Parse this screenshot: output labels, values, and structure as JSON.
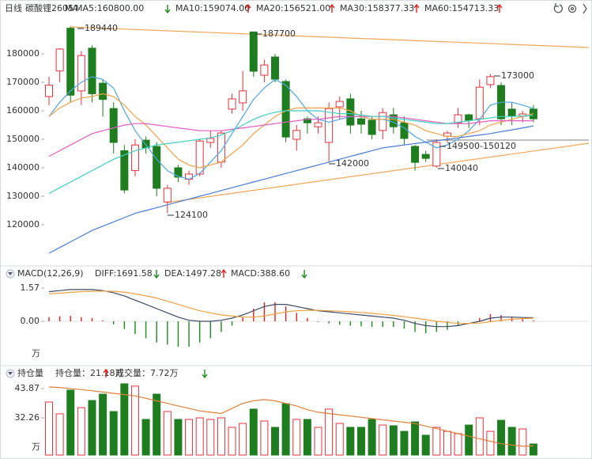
{
  "header": {
    "period": "日线",
    "symbol": "碳酸锂2605"
  },
  "chart_data": [
    {
      "type": "candlestick",
      "legend_title": "MA",
      "ylim": [
        108600,
        192800
      ],
      "yticks": [
        180000,
        170000,
        160000,
        150000,
        140000,
        130000,
        120000
      ],
      "up_color": "#e8313b",
      "down_color": "#1e7d1e",
      "candles": {
        "open": [
          165000,
          174000,
          189000,
          167000,
          182000,
          169700,
          160800,
          146000,
          139000,
          149700,
          147500,
          128000,
          140000,
          136000,
          137800,
          148900,
          142000,
          160600,
          162800,
          187700,
          172500,
          178900,
          170300,
          150000,
          157200,
          154400,
          148900,
          161400,
          164200,
          157200,
          156700,
          153100,
          158600,
          155800,
          147500,
          144700,
          140600,
          151100,
          155800,
          158600,
          157200,
          169200,
          168900,
          160600,
          158100,
          160600
        ],
        "high": [
          172000,
          182000,
          189440,
          181000,
          183000,
          171000,
          163000,
          148000,
          150000,
          151000,
          149000,
          134000,
          141000,
          139000,
          150000,
          153000,
          153000,
          166000,
          174000,
          187700,
          178000,
          180000,
          171000,
          155000,
          158000,
          158000,
          163000,
          165000,
          166000,
          160000,
          158000,
          161000,
          161000,
          158000,
          148000,
          146000,
          150000,
          153000,
          161000,
          159000,
          171000,
          173000,
          170000,
          163000,
          160000,
          162000
        ],
        "low": [
          162000,
          170000,
          163000,
          162000,
          163000,
          158000,
          145000,
          131000,
          137000,
          145000,
          130000,
          124100,
          135000,
          134000,
          137000,
          147000,
          140000,
          159000,
          160000,
          172000,
          170000,
          170000,
          149000,
          146000,
          152000,
          152000,
          142000,
          157000,
          152000,
          152000,
          150000,
          150000,
          152000,
          148000,
          139000,
          142000,
          140040,
          149000,
          154000,
          154000,
          155000,
          168000,
          155000,
          155000,
          156000,
          156000
        ],
        "close": [
          169000,
          181700,
          165500,
          179400,
          166000,
          164000,
          148900,
          132200,
          148000,
          147000,
          132800,
          132800,
          136700,
          137800,
          149400,
          150300,
          152200,
          164200,
          167000,
          173900,
          176100,
          171100,
          150800,
          153100,
          155800,
          155800,
          160800,
          163300,
          155000,
          155300,
          151700,
          159400,
          154400,
          150300,
          141900,
          143300,
          148900,
          152200,
          158600,
          156700,
          168300,
          172000,
          157200,
          158100,
          158900,
          157200
        ]
      },
      "series": [
        {
          "name": "MA5:160800.00",
          "color": "#4ea6e4",
          "values": [
            158000,
            163000,
            167000,
            170000,
            172000,
            171000,
            168000,
            160000,
            153000,
            148000,
            143000,
            139000,
            137000,
            136000,
            138000,
            142000,
            146000,
            152000,
            158000,
            164000,
            168000,
            171000,
            169000,
            165000,
            160000,
            157000,
            156000,
            157000,
            158000,
            158000,
            157000,
            157000,
            156000,
            154000,
            151000,
            149000,
            147000,
            148000,
            150000,
            153000,
            157000,
            162000,
            163000,
            163000,
            162000,
            160800
          ]
        },
        {
          "name": "MA10:159074.00",
          "color": "#f3a24a",
          "values": [
            158000,
            161000,
            163000,
            164500,
            165000,
            166000,
            165000,
            162000,
            158000,
            155000,
            151000,
            147000,
            143000,
            141000,
            140000,
            141000,
            142000,
            145000,
            148000,
            152000,
            155000,
            158000,
            160000,
            161000,
            161000,
            161000,
            161000,
            161000,
            160000,
            158000,
            157000,
            157000,
            157000,
            156000,
            155000,
            153000,
            152000,
            151000,
            151000,
            152000,
            153000,
            155000,
            156000,
            157000,
            158000,
            159074
          ]
        },
        {
          "name": "MA20:156521.00",
          "color": "#e35bc0",
          "values": [
            144000,
            146000,
            148000,
            150000,
            152000,
            153000,
            154000,
            155000,
            155500,
            155500,
            155000,
            154500,
            154000,
            153500,
            153000,
            153000,
            153000,
            153500,
            154000,
            154500,
            155000,
            155500,
            156000,
            156500,
            157000,
            157000,
            157500,
            158000,
            158000,
            158000,
            158000,
            158000,
            158000,
            157500,
            157000,
            156500,
            156000,
            155500,
            155500,
            155500,
            156000,
            156500,
            156500,
            156500,
            156500,
            156521
          ]
        },
        {
          "name": "MA30:158377.33",
          "color": "#3fcfc2",
          "values": [
            131000,
            133000,
            135000,
            137000,
            139000,
            141000,
            143000,
            144500,
            146000,
            147000,
            148000,
            148500,
            149000,
            149500,
            150000,
            150500,
            151500,
            153000,
            155000,
            157000,
            158500,
            159500,
            160000,
            160000,
            160000,
            160000,
            159500,
            159000,
            159000,
            158500,
            158000,
            158000,
            157500,
            157000,
            156500,
            156000,
            155500,
            155500,
            156000,
            156500,
            157000,
            157500,
            158000,
            158000,
            158200,
            158377
          ]
        },
        {
          "name": "MA60:154713.33",
          "color": "#4a7bd8",
          "values": [
            110000,
            112000,
            114000,
            116000,
            118000,
            119500,
            121000,
            122500,
            124000,
            125000,
            126000,
            127000,
            128000,
            129000,
            130000,
            131000,
            132000,
            133000,
            134000,
            135000,
            136000,
            137000,
            138000,
            139000,
            140000,
            141000,
            142000,
            143000,
            144000,
            145000,
            146000,
            147000,
            147500,
            148000,
            148500,
            149000,
            149500,
            150000,
            150500,
            151000,
            151500,
            152000,
            152700,
            153300,
            154000,
            154713
          ]
        }
      ],
      "annotations": [
        "189440",
        "187700",
        "173000",
        "124100",
        "142000",
        "149500-150120",
        "140040"
      ]
    },
    {
      "type": "macd",
      "title": "MACD(12,26,9)",
      "unit": "万",
      "ylim": [
        -1.83,
        2.02
      ],
      "yticks": [
        1.57,
        {
          "value": 0,
          "label": "0.00"
        }
      ],
      "series": [
        {
          "name": "DIFF:1691.58",
          "color": "#3d4a66",
          "values": [
            1.4,
            1.45,
            1.5,
            1.5,
            1.5,
            1.45,
            1.35,
            1.2,
            1.0,
            0.8,
            0.6,
            0.4,
            0.2,
            0.05,
            0.0,
            0.0,
            0.05,
            0.15,
            0.3,
            0.5,
            0.7,
            0.8,
            0.8,
            0.7,
            0.6,
            0.5,
            0.45,
            0.4,
            0.35,
            0.3,
            0.25,
            0.2,
            0.15,
            0.05,
            -0.1,
            -0.2,
            -0.25,
            -0.25,
            -0.2,
            -0.1,
            0.0,
            0.15,
            0.2,
            0.2,
            0.18,
            0.17
          ]
        },
        {
          "name": "DEA:1497.28",
          "color": "#f0a040",
          "values": [
            1.3,
            1.33,
            1.37,
            1.4,
            1.42,
            1.43,
            1.42,
            1.38,
            1.3,
            1.2,
            1.1,
            0.95,
            0.8,
            0.65,
            0.5,
            0.4,
            0.3,
            0.25,
            0.2,
            0.2,
            0.25,
            0.35,
            0.45,
            0.5,
            0.52,
            0.52,
            0.5,
            0.48,
            0.45,
            0.42,
            0.38,
            0.33,
            0.28,
            0.22,
            0.15,
            0.08,
            0.0,
            -0.05,
            -0.1,
            -0.1,
            -0.08,
            -0.02,
            0.05,
            0.1,
            0.13,
            0.15
          ]
        }
      ],
      "histogram": {
        "name": "MACD:388.60",
        "color": "#e02020",
        "negative_color": "#1e8a1e",
        "values": [
          0.2,
          0.24,
          0.26,
          0.2,
          0.16,
          0.04,
          -0.14,
          -0.36,
          -0.6,
          -0.8,
          -1.0,
          -1.1,
          -1.2,
          -1.2,
          -1.0,
          -0.8,
          -0.5,
          -0.2,
          0.2,
          0.6,
          0.9,
          0.9,
          0.7,
          0.4,
          0.16,
          -0.04,
          -0.1,
          -0.16,
          -0.2,
          -0.24,
          -0.26,
          -0.26,
          -0.26,
          -0.34,
          -0.5,
          -0.56,
          -0.5,
          -0.4,
          -0.2,
          0.0,
          0.16,
          0.34,
          0.3,
          0.2,
          0.1,
          0.04
        ]
      }
    },
    {
      "type": "volume",
      "title": "持仓量",
      "unit": "万",
      "ylim": [
        17.53,
        46.38
      ],
      "yticks": [
        43.87,
        32.26
      ],
      "y2lim": [
        0,
        50.7
      ],
      "series": [
        {
          "name": "持仓量：21.18万",
          "color": "#e0803a",
          "values": [
            44.5,
            44.3,
            43.8,
            43.5,
            43,
            42.5,
            42,
            41.5,
            41,
            40,
            39,
            38,
            37,
            36,
            35,
            34.5,
            34,
            36,
            38,
            39,
            39.5,
            39,
            38,
            37,
            35.5,
            34.5,
            34,
            33.5,
            33,
            32.5,
            32,
            31.5,
            31,
            30.5,
            30,
            29,
            28,
            27,
            26,
            25,
            24,
            23,
            22,
            21.5,
            21,
            21.18
          ]
        },
        {
          "name": "成交量：7.72万",
          "color": "#a0522d",
          "axis": "y2",
          "values": [
            36.9,
            28.7,
            45.2,
            33,
            38,
            42.4,
            30.3,
            49.6,
            48,
            24.8,
            42.4,
            30.3,
            24.8,
            24.8,
            25.9,
            24.8,
            25.9,
            19.3,
            22,
            32,
            23.7,
            19.3,
            35.8,
            24.8,
            24.8,
            19.3,
            32,
            22,
            19.3,
            19.3,
            24.8,
            20.9,
            20.4,
            16.5,
            23.1,
            13.8,
            19.3,
            16.5,
            14.9,
            20.9,
            25.9,
            16.5,
            24.2,
            19.3,
            18.2,
            7.72
          ]
        }
      ]
    }
  ]
}
